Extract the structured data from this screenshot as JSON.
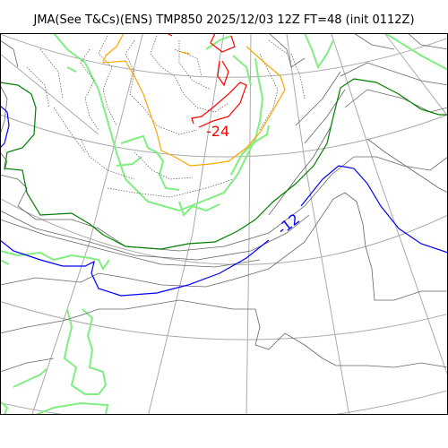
{
  "title": "JMA(See T&Cs)(ENS) TMP850 2025/12/03 12Z FT=48 (init 0112Z)",
  "contour_labels": [
    {
      "text": "-24",
      "color": "#ff0000"
    },
    {
      "text": "-12",
      "color": "#0000ff"
    }
  ],
  "colors": {
    "coast": "#80ee80",
    "graticule": "#aaaaaa",
    "isotherm_minus24": "#ff0000",
    "isotherm_orange": "#ffa500",
    "isotherm_green": "#008000",
    "isotherm_blue": "#0000ff",
    "isotherm_other": "#666666"
  }
}
